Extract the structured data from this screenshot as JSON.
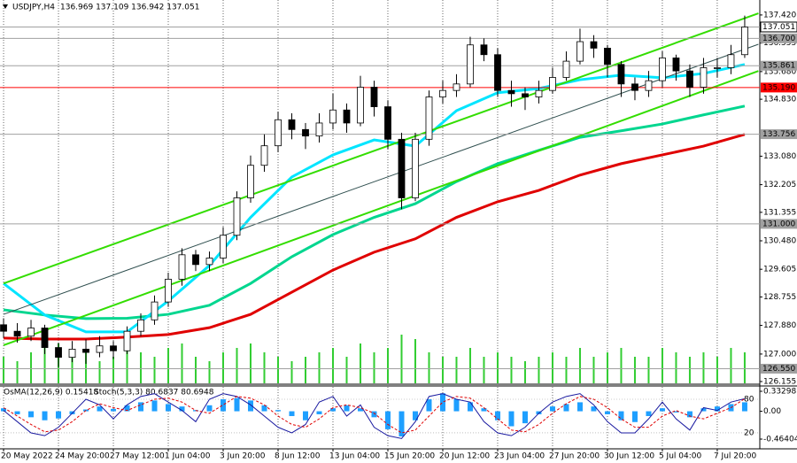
{
  "chart_data": [
    {
      "type": "candlestick",
      "title": "USDJPY,H4",
      "subtitle": "136.969 137.109 136.942 137.051",
      "xlim": [
        -0.26,
        55.1
      ],
      "ylim": [
        126.1,
        137.88
      ],
      "xticks": [
        {
          "value": 0,
          "label": "20 May 2022"
        },
        {
          "value": 4,
          "label": "24 May 20:00"
        },
        {
          "value": 8,
          "label": "27 May 12:00"
        },
        {
          "value": 12,
          "label": "1 Jun 04:00"
        },
        {
          "value": 16,
          "label": "3 Jun 20:00"
        },
        {
          "value": 20,
          "label": "8 Jun 12:00"
        },
        {
          "value": 24,
          "label": "13 Jun 04:00"
        },
        {
          "value": 28,
          "label": "15 Jun 20:00"
        },
        {
          "value": 32,
          "label": "20 Jun 12:00"
        },
        {
          "value": 36,
          "label": "23 Jun 04:00"
        },
        {
          "value": 40,
          "label": "27 Jun 20:00"
        },
        {
          "value": 44,
          "label": "30 Jun 12:00"
        },
        {
          "value": 48,
          "label": "5 Jul 04:00"
        },
        {
          "value": 52,
          "label": "7 Jul 20:00"
        }
      ],
      "yticks": [
        {
          "value": 137.42,
          "label": "137.420"
        },
        136.555,
        {
          "value": 135.68,
          "label": "135.680"
        },
        {
          "value": 134.83,
          "label": "134.830"
        },
        {
          "value": 133.08,
          "label": "133.080"
        },
        132.205,
        131.355,
        {
          "value": 130.48,
          "label": "130.480"
        },
        129.605,
        128.755,
        {
          "value": 127.88,
          "label": "127.880"
        },
        {
          "value": 127,
          "label": "127.000"
        },
        126.155
      ],
      "candle_color": "#000000",
      "open": [
        127.9,
        127.7,
        127.55,
        127.8,
        127.2,
        126.9,
        127.15,
        127.05,
        127.25,
        127.1,
        127.7,
        128.05,
        128.6,
        129.3,
        130.05,
        129.75,
        129.95,
        130.65,
        131.8,
        132.8,
        133.4,
        134.2,
        133.9,
        133.7,
        134.1,
        134.5,
        134.1,
        135.2,
        134.6,
        133.6,
        131.8,
        133.6,
        134.9,
        135.1,
        135.3,
        136.5,
        136.2,
        135.1,
        135.0,
        134.9,
        135.1,
        135.5,
        136.0,
        136.6,
        136.4,
        135.9,
        135.3,
        135.1,
        135.4,
        136.1,
        135.7,
        135.2,
        135.8,
        135.8,
        136.2
      ],
      "high": [
        128.1,
        127.95,
        128.05,
        127.9,
        127.35,
        127.4,
        127.45,
        127.55,
        127.4,
        127.85,
        128.25,
        128.8,
        129.5,
        130.25,
        130.2,
        130.15,
        130.9,
        132.0,
        133.1,
        133.75,
        134.45,
        134.4,
        134.1,
        134.4,
        135.0,
        134.7,
        135.55,
        135.4,
        134.8,
        133.8,
        133.8,
        135.1,
        135.4,
        135.6,
        136.75,
        136.7,
        136.4,
        135.4,
        135.2,
        135.4,
        135.8,
        136.3,
        137.0,
        136.8,
        136.5,
        136.0,
        135.5,
        135.7,
        136.3,
        136.2,
        135.9,
        136.1,
        136.1,
        136.5,
        137.4
      ],
      "low": [
        127.5,
        127.35,
        127.4,
        127.0,
        126.6,
        126.75,
        126.7,
        126.9,
        126.85,
        127.0,
        127.55,
        127.9,
        128.45,
        129.1,
        129.55,
        129.55,
        129.8,
        130.5,
        131.65,
        132.6,
        133.2,
        133.6,
        133.3,
        133.5,
        133.9,
        133.8,
        134.0,
        134.3,
        133.3,
        131.45,
        131.7,
        133.4,
        134.7,
        134.9,
        135.2,
        136.0,
        134.9,
        134.6,
        134.5,
        134.7,
        135.0,
        135.4,
        135.9,
        136.1,
        135.5,
        134.9,
        134.8,
        134.9,
        135.2,
        135.4,
        134.9,
        135.0,
        135.5,
        135.6,
        136.1
      ],
      "close": [
        127.7,
        127.55,
        127.8,
        127.2,
        126.9,
        127.15,
        127.05,
        127.25,
        127.1,
        127.7,
        128.05,
        128.6,
        129.3,
        130.05,
        129.75,
        129.95,
        130.65,
        131.8,
        132.8,
        133.4,
        134.2,
        133.9,
        133.7,
        134.1,
        134.5,
        134.1,
        135.2,
        134.6,
        133.6,
        131.8,
        133.6,
        134.9,
        135.1,
        135.3,
        136.5,
        136.2,
        135.1,
        135.0,
        134.9,
        135.1,
        135.5,
        136.0,
        136.6,
        136.4,
        135.9,
        135.3,
        135.1,
        135.4,
        136.1,
        135.7,
        135.2,
        135.8,
        135.8,
        136.2,
        137.05
      ],
      "volume_color": "#32cd32",
      "volume": [
        30,
        25,
        35,
        40,
        45,
        30,
        35,
        25,
        30,
        40,
        35,
        30,
        40,
        45,
        30,
        25,
        35,
        40,
        45,
        35,
        30,
        25,
        30,
        35,
        40,
        30,
        45,
        35,
        40,
        55,
        50,
        35,
        30,
        30,
        40,
        30,
        35,
        30,
        25,
        30,
        35,
        30,
        40,
        30,
        35,
        40,
        30,
        30,
        40,
        35,
        30,
        35,
        30,
        40,
        35
      ],
      "ma_x": [
        0,
        3,
        6,
        9,
        12,
        15,
        18,
        21,
        24,
        27,
        30,
        33,
        36,
        39,
        42,
        45,
        48,
        51,
        54
      ],
      "series": [
        {
          "color": "#e00000",
          "values": [
            127.49,
            127.46,
            127.46,
            127.52,
            127.6,
            127.81,
            128.22,
            128.9,
            129.58,
            130.13,
            130.54,
            131.2,
            131.68,
            132.03,
            132.5,
            132.85,
            133.12,
            133.39,
            133.75
          ]
        },
        {
          "color": "#00d68f",
          "values": [
            128.36,
            128.2,
            128.09,
            128.1,
            128.22,
            128.5,
            129.17,
            129.99,
            130.67,
            131.2,
            131.62,
            132.3,
            132.85,
            133.26,
            133.66,
            133.86,
            134.07,
            134.35,
            134.62
          ]
        },
        {
          "color": "#00e5ff",
          "values": [
            129.17,
            128.2,
            127.68,
            127.68,
            128.63,
            129.72,
            131.2,
            132.44,
            133.12,
            133.58,
            133.39,
            134.48,
            135.03,
            135.16,
            135.43,
            135.57,
            135.49,
            135.62,
            135.9
          ]
        }
      ],
      "channels": [
        {
          "color": "#33dd00",
          "x": [
            0,
            55
          ],
          "values": [
            129.17,
            137.47
          ]
        },
        {
          "color": "#2f4f4f",
          "x": [
            0,
            55
          ],
          "values": [
            128.22,
            136.52
          ]
        },
        {
          "color": "#33dd00",
          "x": [
            0,
            55
          ],
          "values": [
            127.27,
            135.7
          ]
        }
      ],
      "levels": [
        {
          "value": 137.051,
          "color": "#a0a0a0"
        },
        {
          "value": 136.7,
          "label": "136.700",
          "color": "#a0a0a0"
        },
        {
          "value": 135.861,
          "color": "#a0a0a0"
        },
        {
          "value": 135.19,
          "label": "135.190",
          "color": "#ff0000"
        },
        {
          "value": 133.756,
          "color": "#a0a0a0"
        },
        {
          "value": 131,
          "label": "131.000",
          "color": "#a0a0a0"
        },
        {
          "value": 126.55,
          "label": "126.550",
          "color": "#a0a0a0"
        }
      ]
    },
    {
      "type": "oscillator",
      "title": "OsMA(12,26,9) 0.15418",
      "subtitle": "Stoch(5,3,3) 80.6837 80.6948",
      "xlim": [
        -0.26,
        55.1
      ],
      "ylim": [
        -0.597,
        0.407
      ],
      "yticks": [
        0.33298,
        {
          "value": 0,
          "label": "0.00"
        },
        -0.46404
      ],
      "y2lim": [
        -5.3,
        102.1
      ],
      "y2ticks": [
        80,
        20
      ],
      "color": "#1e9fff",
      "values": [
        0.05,
        -0.05,
        -0.1,
        -0.15,
        -0.12,
        -0.05,
        0.03,
        0.08,
        0.04,
        0.1,
        0.15,
        0.18,
        0.12,
        0.08,
        0.02,
        0.1,
        0.2,
        0.22,
        0.18,
        0.1,
        0.02,
        -0.08,
        -0.15,
        -0.05,
        0.05,
        0.1,
        0.05,
        -0.1,
        -0.3,
        -0.42,
        -0.15,
        0.2,
        0.3,
        0.2,
        0.15,
        0.05,
        -0.15,
        -0.25,
        -0.2,
        -0.05,
        0.08,
        0.12,
        0.15,
        0.08,
        -0.05,
        -0.15,
        -0.18,
        -0.08,
        0.05,
        -0.02,
        -0.1,
        0.05,
        0.08,
        0.12,
        0.15
      ],
      "series": [
        {
          "color": "#1a1aa0",
          "axis": "y2",
          "values": [
            60,
            40,
            20,
            15,
            30,
            55,
            80,
            70,
            45,
            70,
            85,
            90,
            75,
            60,
            40,
            80,
            90,
            85,
            70,
            50,
            30,
            20,
            35,
            75,
            85,
            50,
            70,
            30,
            15,
            10,
            40,
            85,
            90,
            80,
            75,
            40,
            20,
            15,
            30,
            55,
            75,
            85,
            90,
            70,
            40,
            20,
            20,
            45,
            75,
            45,
            25,
            65,
            60,
            75,
            81
          ]
        },
        {
          "color": "#e00000",
          "axis": "y2",
          "dashed": true,
          "values": [
            65,
            50,
            35,
            22,
            25,
            40,
            60,
            72,
            65,
            60,
            70,
            80,
            82,
            75,
            60,
            55,
            70,
            85,
            82,
            70,
            50,
            35,
            30,
            45,
            65,
            70,
            65,
            55,
            35,
            20,
            25,
            50,
            75,
            85,
            82,
            65,
            45,
            25,
            22,
            35,
            55,
            72,
            85,
            80,
            65,
            45,
            30,
            30,
            50,
            60,
            50,
            45,
            55,
            65,
            81
          ]
        }
      ]
    }
  ]
}
